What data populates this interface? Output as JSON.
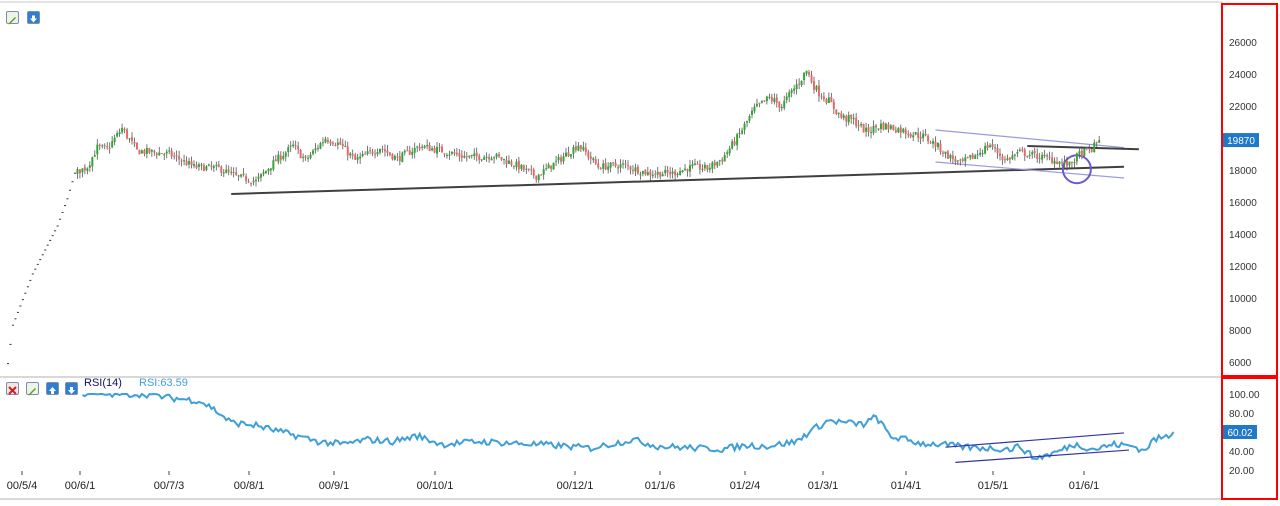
{
  "colors": {
    "up": "#33a532",
    "down": "#e36a6a",
    "rsi_line": "#3f9fd8",
    "trendline": "#404040",
    "channel": "#3333aa",
    "wedge": "#9a9ae0",
    "circle": "#6a5acd",
    "price_badge": "#1f78c8",
    "frame": "#ff0000"
  },
  "icons": {
    "main_toolbar": [
      "edit-icon",
      "collapse-down-icon"
    ],
    "rsi_toolbar": [
      "close-icon",
      "edit-icon",
      "move-up-icon",
      "move-down-icon"
    ]
  },
  "rsi": {
    "title": "RSI(14)",
    "value_label": "RSI:63.59",
    "badge": "60.02"
  },
  "price_badge": "19870",
  "chart_data": [
    {
      "type": "candlestick",
      "x_tick_labels": [
        "00/5/4",
        "00/6/1",
        "00/7/3",
        "00/8/1",
        "00/9/1",
        "00/10/1",
        "00/12/1",
        "01/1/6",
        "01/2/4",
        "01/3/1",
        "01/4/1",
        "01/5/1",
        "01/6/1"
      ],
      "y_tick_labels": [
        "6000",
        "8000",
        "10000",
        "12000",
        "14000",
        "16000",
        "18000",
        "20000",
        "22000",
        "24000",
        "26000"
      ],
      "ylim": [
        5000,
        27000
      ],
      "last_price": 19870,
      "close_anchors": [
        [
          0,
          5900
        ],
        [
          2,
          8300
        ],
        [
          10,
          11500
        ],
        [
          20,
          14500
        ],
        [
          24,
          16200
        ],
        [
          27,
          17800
        ],
        [
          32,
          18200
        ],
        [
          36,
          19400
        ],
        [
          40,
          19300
        ],
        [
          46,
          20600
        ],
        [
          52,
          19200
        ],
        [
          65,
          19000
        ],
        [
          75,
          18200
        ],
        [
          85,
          18100
        ],
        [
          92,
          17600
        ],
        [
          100,
          17300
        ],
        [
          108,
          18600
        ],
        [
          115,
          19500
        ],
        [
          120,
          18600
        ],
        [
          128,
          20000
        ],
        [
          134,
          19600
        ],
        [
          140,
          18600
        ],
        [
          150,
          19400
        ],
        [
          157,
          18700
        ],
        [
          166,
          19500
        ],
        [
          175,
          19200
        ],
        [
          185,
          18800
        ],
        [
          196,
          18900
        ],
        [
          205,
          18300
        ],
        [
          213,
          17600
        ],
        [
          222,
          18600
        ],
        [
          230,
          19600
        ],
        [
          238,
          18200
        ],
        [
          248,
          18300
        ],
        [
          258,
          17800
        ],
        [
          268,
          17800
        ],
        [
          276,
          18200
        ],
        [
          282,
          18100
        ],
        [
          288,
          18700
        ],
        [
          294,
          20000
        ],
        [
          301,
          21800
        ],
        [
          307,
          22500
        ],
        [
          312,
          22000
        ],
        [
          318,
          23300
        ],
        [
          322,
          24200
        ],
        [
          326,
          23000
        ],
        [
          331,
          22300
        ],
        [
          336,
          21300
        ],
        [
          341,
          21100
        ],
        [
          346,
          20400
        ],
        [
          352,
          20800
        ],
        [
          358,
          20600
        ],
        [
          364,
          20300
        ],
        [
          369,
          20100
        ],
        [
          374,
          19600
        ],
        [
          378,
          19000
        ],
        [
          384,
          18400
        ],
        [
          390,
          18900
        ],
        [
          396,
          19600
        ],
        [
          402,
          18600
        ],
        [
          408,
          19100
        ],
        [
          414,
          18900
        ],
        [
          420,
          18700
        ],
        [
          424,
          18500
        ],
        [
          428,
          18300
        ],
        [
          432,
          19000
        ],
        [
          437,
          19300
        ],
        [
          440,
          19870
        ]
      ],
      "trendlines": [
        {
          "role": "long support",
          "points": [
            [
              90,
              16500
            ],
            [
              450,
              18200
            ]
          ]
        },
        {
          "role": "wedge top",
          "points": [
            [
              374,
              20500
            ],
            [
              450,
              19400
            ]
          ]
        },
        {
          "role": "wedge bottom",
          "points": [
            [
              374,
              18500
            ],
            [
              450,
              17500
            ]
          ]
        },
        {
          "role": "horizontal",
          "points": [
            [
              411,
              19500
            ],
            [
              456,
              19300
            ]
          ]
        }
      ],
      "annotation_circle": {
        "bar": 431,
        "price": 18050
      }
    },
    {
      "type": "line",
      "title": "RSI(14)",
      "y_tick_labels": [
        "20.00",
        "40.00",
        "60.00",
        "80.00",
        "100.00"
      ],
      "ylim": [
        8,
        106
      ],
      "last_value": 63.59,
      "series_anchors": [
        [
          0,
          100
        ],
        [
          25,
          100
        ],
        [
          35,
          96
        ],
        [
          47,
          93
        ],
        [
          52,
          86
        ],
        [
          60,
          70
        ],
        [
          70,
          67
        ],
        [
          80,
          60
        ],
        [
          88,
          55
        ],
        [
          95,
          50
        ],
        [
          105,
          47
        ],
        [
          115,
          52
        ],
        [
          125,
          50
        ],
        [
          135,
          56
        ],
        [
          145,
          47
        ],
        [
          160,
          50
        ],
        [
          175,
          48
        ],
        [
          190,
          46
        ],
        [
          205,
          43
        ],
        [
          222,
          52
        ],
        [
          232,
          45
        ],
        [
          248,
          43
        ],
        [
          258,
          42
        ],
        [
          268,
          46
        ],
        [
          276,
          45
        ],
        [
          288,
          50
        ],
        [
          294,
          62
        ],
        [
          301,
          72
        ],
        [
          307,
          70
        ],
        [
          315,
          68
        ],
        [
          320,
          76
        ],
        [
          326,
          55
        ],
        [
          332,
          52
        ],
        [
          338,
          48
        ],
        [
          346,
          47
        ],
        [
          356,
          44
        ],
        [
          366,
          43
        ],
        [
          374,
          42
        ],
        [
          378,
          45
        ],
        [
          384,
          32
        ],
        [
          392,
          38
        ],
        [
          400,
          47
        ],
        [
          408,
          42
        ],
        [
          416,
          47
        ],
        [
          424,
          45
        ],
        [
          428,
          40
        ],
        [
          432,
          52
        ],
        [
          437,
          55
        ],
        [
          440,
          60
        ]
      ],
      "channel_lines": [
        {
          "role": "channel top",
          "points": [
            [
              374,
              44
            ],
            [
              446,
              59
            ]
          ]
        },
        {
          "role": "channel bottom",
          "points": [
            [
              378,
              28
            ],
            [
              448,
              41
            ]
          ]
        }
      ]
    }
  ]
}
